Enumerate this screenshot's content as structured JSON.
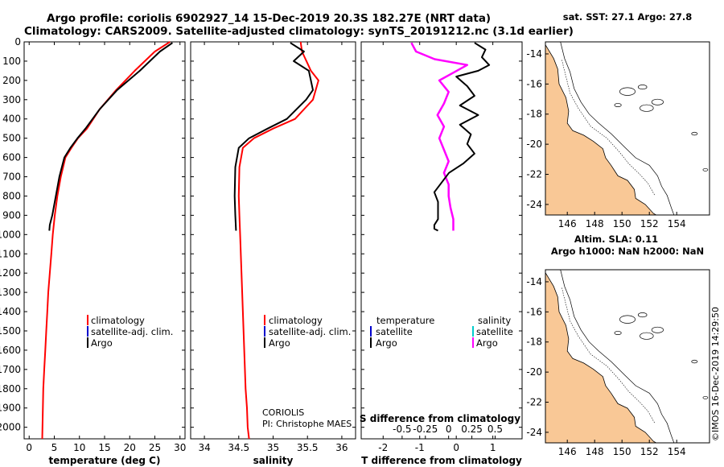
{
  "titles": {
    "line1": "Argo profile: coriolis 6902927_14 15-Dec-2019 20.3S 182.27E (NRT data)",
    "line2": "Climatology: CARS2009. Satellite-adjusted climatology: synTS_20191212.nc (3.1d earlier)"
  },
  "depth_ticks": [
    "0",
    "100",
    "200",
    "300",
    "400",
    "500",
    "600",
    "700",
    "800",
    "900",
    "1000",
    "1100",
    "1200",
    "1300",
    "1400",
    "1500",
    "1600",
    "1700",
    "1800",
    "1900",
    "2000"
  ],
  "colors": {
    "climatology": "#ff0000",
    "satellite": "#0000cc",
    "argo": "#000000",
    "argo_diff": "#ff00ff",
    "sat_sal": "#00cccc",
    "land": "#f9c896"
  },
  "legend": {
    "climatology": "climatology",
    "satellite_adj": "satellite-adj. clim.",
    "argo": "Argo"
  },
  "diff_legend": {
    "temperature": "temperature",
    "salinity": "salinity",
    "satellite": "satellite",
    "argo": "Argo"
  },
  "credits": {
    "source": "CORIOLIS",
    "pi": "PI: Christophe MAES",
    "stamp": "©IMOS 16-Dec-2019 14:29:50"
  },
  "chart_data": [
    {
      "type": "line",
      "xlabel": "temperature (deg C)",
      "xlim": [
        -1,
        31
      ],
      "ylim": [
        2060,
        0
      ],
      "xticks": [
        "0",
        "5",
        "10",
        "15",
        "20",
        "25",
        "30"
      ],
      "series": [
        {
          "name": "climatology",
          "x": [
            28.0,
            25.0,
            21.0,
            17.3,
            14.0,
            11.5,
            9.7,
            8.4,
            7.2,
            6.3,
            5.6,
            5.1,
            4.7,
            4.4,
            4.1,
            3.8,
            3.6,
            3.4,
            3.2,
            3.0,
            2.8,
            2.6
          ],
          "y": [
            0,
            50,
            150,
            250,
            350,
            450,
            500,
            550,
            600,
            700,
            800,
            900,
            1000,
            1100,
            1200,
            1300,
            1400,
            1500,
            1600,
            1700,
            1800,
            2060
          ]
        },
        {
          "name": "Argo",
          "x": [
            28.5,
            26.0,
            22.0,
            17.5,
            14.0,
            11.2,
            9.6,
            8.2,
            7.0,
            6.0,
            5.3,
            4.6,
            4.1,
            4.0
          ],
          "y": [
            5,
            50,
            150,
            250,
            350,
            450,
            500,
            550,
            600,
            700,
            800,
            900,
            950,
            980
          ]
        }
      ]
    },
    {
      "type": "line",
      "xlabel": "salinity",
      "xlim": [
        33.8,
        36.2
      ],
      "ylim": [
        2060,
        0
      ],
      "xticks": [
        "34",
        "34.5",
        "35",
        "35.5",
        "36"
      ],
      "series": [
        {
          "name": "climatology",
          "x": [
            35.4,
            35.42,
            35.55,
            35.66,
            35.58,
            35.32,
            35.0,
            34.72,
            34.56,
            34.51,
            34.5,
            34.51,
            34.52,
            34.54,
            34.56,
            34.58,
            34.6,
            34.62,
            34.63,
            34.65
          ],
          "y": [
            0,
            50,
            150,
            200,
            300,
            400,
            450,
            500,
            550,
            650,
            800,
            900,
            1000,
            1200,
            1400,
            1600,
            1800,
            1900,
            2000,
            2060
          ]
        },
        {
          "name": "Argo",
          "x": [
            35.25,
            35.45,
            35.3,
            35.52,
            35.58,
            35.48,
            35.2,
            34.92,
            34.65,
            34.5,
            34.45,
            34.44,
            34.45,
            34.46
          ],
          "y": [
            5,
            50,
            100,
            150,
            250,
            300,
            400,
            450,
            500,
            550,
            650,
            800,
            900,
            980
          ]
        }
      ]
    },
    {
      "type": "line",
      "xlabel": "T difference from climatology",
      "xlim": [
        -2.6,
        1.8
      ],
      "ylim": [
        2060,
        0
      ],
      "xticks": [
        "-2",
        "-1",
        "0",
        "1"
      ],
      "secondary_label": "S difference from climatology",
      "secondary_ticks": [
        "-0.5",
        "-0.25",
        "0",
        "0.25",
        "0.5"
      ],
      "series": [
        {
          "name": "Argo temperature",
          "x": [
            0.5,
            0.8,
            0.7,
            0.9,
            0.6,
            0.0,
            0.3,
            0.5,
            0.1,
            0.6,
            0.1,
            0.4,
            0.3,
            0.5,
            0.2,
            -0.2,
            -0.4,
            -0.6,
            -0.5,
            -0.5,
            -0.5,
            -0.6,
            -0.6,
            -0.5
          ],
          "y": [
            5,
            40,
            80,
            120,
            150,
            180,
            230,
            280,
            330,
            380,
            430,
            480,
            530,
            580,
            630,
            680,
            730,
            780,
            830,
            880,
            920,
            950,
            970,
            980
          ]
        },
        {
          "name": "Argo salinity",
          "x": [
            -0.4,
            -0.35,
            -0.15,
            0.2,
            0.05,
            -0.1,
            0.0,
            -0.05,
            -0.12,
            -0.05,
            -0.1,
            -0.05,
            0.0,
            -0.05,
            0.0,
            0.0,
            0.02,
            0.05,
            0.05
          ],
          "y": [
            5,
            50,
            90,
            120,
            160,
            200,
            260,
            320,
            380,
            440,
            500,
            560,
            620,
            680,
            740,
            800,
            860,
            920,
            980
          ]
        }
      ]
    },
    {
      "type": "map",
      "title": "sat. SST: 27.1 Argo: 27.8",
      "xlim": [
        144.4,
        156.4
      ],
      "ylim": [
        -24.7,
        -13.2
      ],
      "xticks": [
        "146",
        "148",
        "150",
        "152",
        "154"
      ],
      "yticks": [
        "-14",
        "-16",
        "-18",
        "-20",
        "-22",
        "-24"
      ]
    },
    {
      "type": "map",
      "title": "Altim. SLA: 0.11",
      "subtitle": "Argo h1000: NaN h2000: NaN",
      "xlim": [
        144.4,
        156.4
      ],
      "ylim": [
        -24.7,
        -13.2
      ],
      "xticks": [
        "146",
        "148",
        "150",
        "152",
        "154"
      ],
      "yticks": [
        "-14",
        "-16",
        "-18",
        "-20",
        "-22",
        "-24"
      ]
    }
  ]
}
